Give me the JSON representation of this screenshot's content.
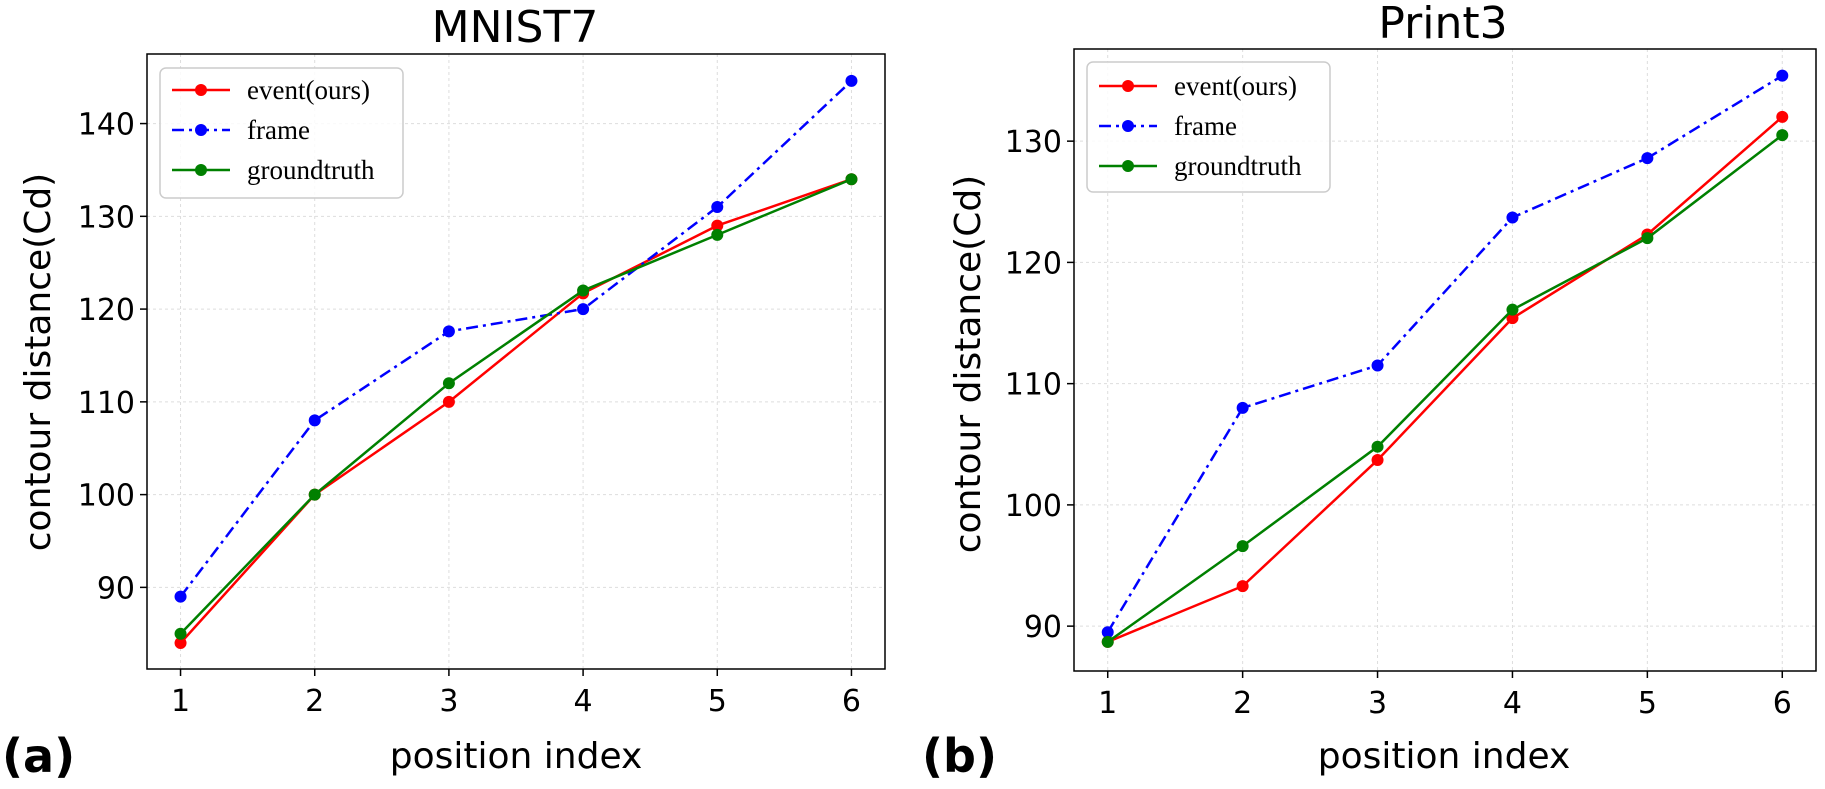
{
  "chart_data": [
    {
      "panel_label": "(a)",
      "type": "line",
      "title": "MNIST7",
      "xlabel": "position index",
      "ylabel": "contour distance(Cd)",
      "x": [
        1,
        2,
        3,
        4,
        5,
        6
      ],
      "x_ticks": [
        "1",
        "2",
        "3",
        "4",
        "5",
        "6"
      ],
      "y_ticks": [
        90,
        100,
        110,
        120,
        130,
        140
      ],
      "xlim": [
        0.75,
        6.25
      ],
      "ylim": [
        81.2,
        147.5
      ],
      "grid": true,
      "legend_position": "top-left",
      "series": [
        {
          "name": "event(ours)",
          "color": "#ff0000",
          "style": "solid",
          "values": [
            84,
            100,
            110,
            121.7,
            129,
            134
          ]
        },
        {
          "name": "frame",
          "color": "#0000ff",
          "style": "dashdot",
          "values": [
            89,
            108,
            117.6,
            120,
            131,
            144.6
          ]
        },
        {
          "name": "groundtruth",
          "color": "#008000",
          "style": "solid",
          "values": [
            85,
            100,
            112,
            122,
            128,
            134
          ]
        }
      ]
    },
    {
      "panel_label": "(b)",
      "type": "line",
      "title": "Print3",
      "xlabel": "position index",
      "ylabel": "contour distance(Cd)",
      "x": [
        1,
        2,
        3,
        4,
        5,
        6
      ],
      "x_ticks": [
        "1",
        "2",
        "3",
        "4",
        "5",
        "6"
      ],
      "y_ticks": [
        90,
        100,
        110,
        120,
        130
      ],
      "xlim": [
        0.75,
        6.25
      ],
      "ylim": [
        86.3,
        137.6
      ],
      "grid": true,
      "legend_position": "top-left",
      "series": [
        {
          "name": "event(ours)",
          "color": "#ff0000",
          "style": "solid",
          "values": [
            88.7,
            93.3,
            103.7,
            115.4,
            122.3,
            132
          ]
        },
        {
          "name": "frame",
          "color": "#0000ff",
          "style": "dashdot",
          "values": [
            89.5,
            108,
            111.5,
            123.7,
            128.6,
            135.4
          ]
        },
        {
          "name": "groundtruth",
          "color": "#008000",
          "style": "solid",
          "values": [
            88.7,
            96.6,
            104.8,
            116.1,
            122,
            130.5
          ]
        }
      ]
    }
  ]
}
